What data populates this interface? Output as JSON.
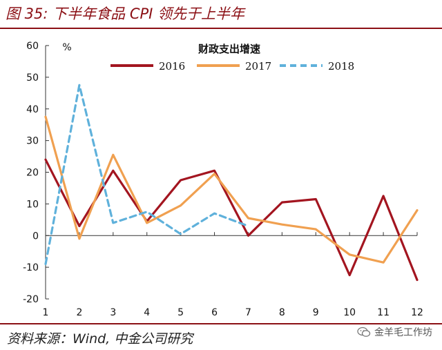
{
  "header": {
    "title": "图 35: 下半年食品 CPI 领先于上半年"
  },
  "footer": {
    "source": "资料来源：Wind, 中金公司研究",
    "watermark": "金羊毛工作坊"
  },
  "colors": {
    "accent": "#8b0f14",
    "s2016": "#a31520",
    "s2017": "#f0a050",
    "s2018": "#5fb1db"
  },
  "chart_data": {
    "type": "line",
    "title": "财政支出增速",
    "ylabel": "%",
    "x": [
      1,
      2,
      3,
      4,
      5,
      6,
      7,
      8,
      9,
      10,
      11,
      12
    ],
    "ylim": [
      -20,
      60
    ],
    "yticks": [
      60,
      50,
      40,
      30,
      20,
      10,
      0,
      -10,
      -20
    ],
    "grid": false,
    "legend": "top",
    "series": [
      {
        "name": "2016",
        "style": "solid",
        "color": "#a31520",
        "values": [
          24,
          3,
          20.5,
          4.5,
          17.5,
          20.5,
          0,
          10.5,
          11.5,
          -12.5,
          12.5,
          -14
        ]
      },
      {
        "name": "2017",
        "style": "solid",
        "color": "#f0a050",
        "values": [
          37.5,
          -1,
          25.5,
          4,
          9.5,
          19.5,
          5.5,
          3.5,
          2,
          -6,
          -8.5,
          8
        ]
      },
      {
        "name": "2018",
        "style": "dashed",
        "color": "#5fb1db",
        "values": [
          -9,
          47.5,
          4,
          7.5,
          0.5,
          7,
          3,
          null,
          null,
          null,
          null,
          null
        ]
      }
    ]
  }
}
